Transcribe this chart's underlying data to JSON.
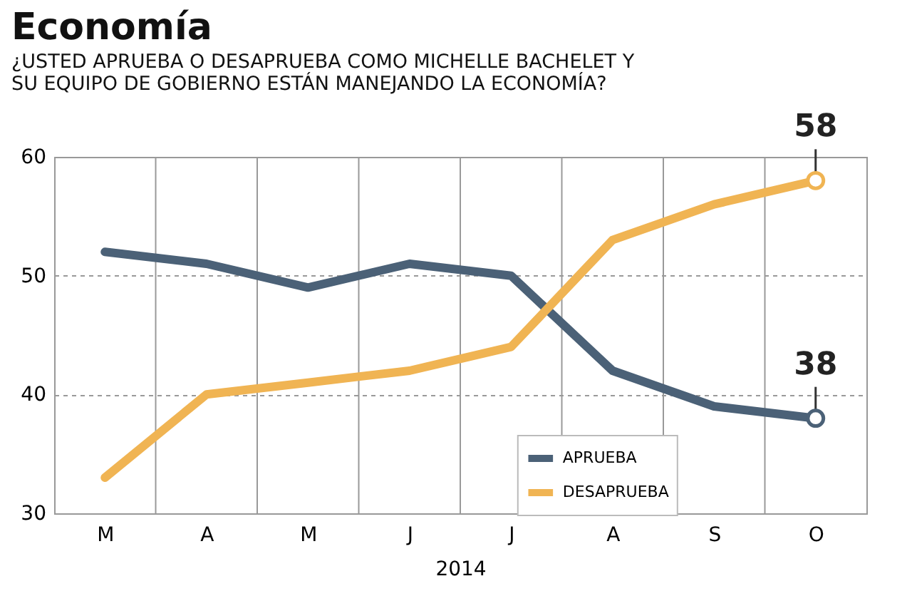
{
  "chart_data": {
    "type": "line",
    "title": "Economía",
    "subtitle": "¿USTED APRUEBA O DESAPRUEBA COMO MICHELLE BACHELET Y\nSU EQUIPO DE GOBIERNO ESTÁN MANEJANDO LA ECONOMÍA?",
    "xlabel": "2014",
    "categories": [
      "M",
      "A",
      "M",
      "J",
      "J",
      "A",
      "S",
      "O"
    ],
    "series": [
      {
        "name": "APRUEBA",
        "color": "#4b6177",
        "values": [
          52,
          51,
          49,
          51,
          50,
          42,
          39,
          38
        ],
        "value_labels": [
          null,
          null,
          null,
          null,
          null,
          null,
          null,
          "38"
        ]
      },
      {
        "name": "DESAPRUEBA",
        "color": "#f0b453",
        "values": [
          33,
          40,
          41,
          42,
          44,
          53,
          56,
          58
        ],
        "value_labels": [
          null,
          null,
          null,
          null,
          null,
          null,
          null,
          "58"
        ]
      }
    ],
    "ylim": [
      30,
      60
    ],
    "yticks": [
      30,
      40,
      50,
      60
    ],
    "grid": true,
    "legend": "bottom right",
    "marker": "none",
    "line_style": "solid"
  }
}
